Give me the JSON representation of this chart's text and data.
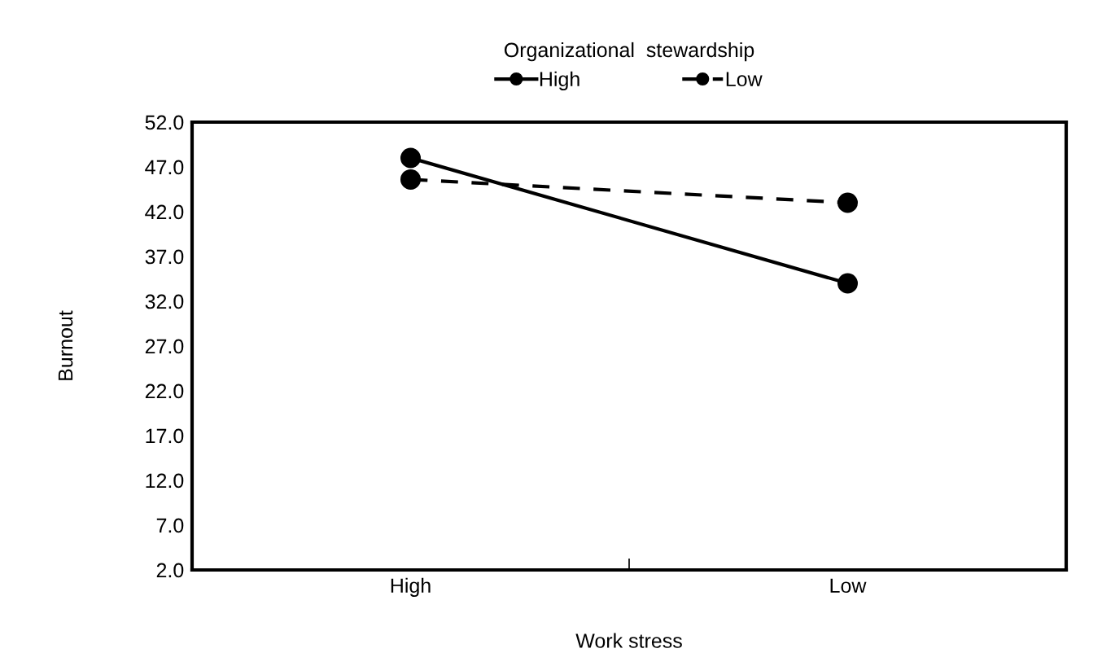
{
  "chart_data": {
    "type": "line",
    "xlabel": "Work stress",
    "ylabel": "Burnout",
    "legend_title": "Organizational  stewardship",
    "categories": [
      "High",
      "Low"
    ],
    "series": [
      {
        "name": "High",
        "color": "#000000",
        "values": [
          48.0,
          34.0
        ],
        "line_style": "solid"
      },
      {
        "name": "Low",
        "color": "#000000",
        "values": [
          45.6,
          43.0
        ],
        "line_style": "dashed"
      }
    ],
    "ylim": [
      2.0,
      52.0
    ],
    "yticks": [
      {
        "value": 2,
        "label": "2.0"
      },
      {
        "value": 7,
        "label": "7.0"
      },
      {
        "value": 12,
        "label": "12.0"
      },
      {
        "value": 17,
        "label": "17.0"
      },
      {
        "value": 22,
        "label": "22.0"
      },
      {
        "value": 27,
        "label": "27.0"
      },
      {
        "value": 32,
        "label": "32.0"
      },
      {
        "value": 37,
        "label": "37.0"
      },
      {
        "value": 42,
        "label": "42.0"
      },
      {
        "value": 47,
        "label": "47.0"
      },
      {
        "value": 52,
        "label": "52.0"
      }
    ],
    "marker": "circle",
    "grid": false,
    "legend": "top"
  }
}
